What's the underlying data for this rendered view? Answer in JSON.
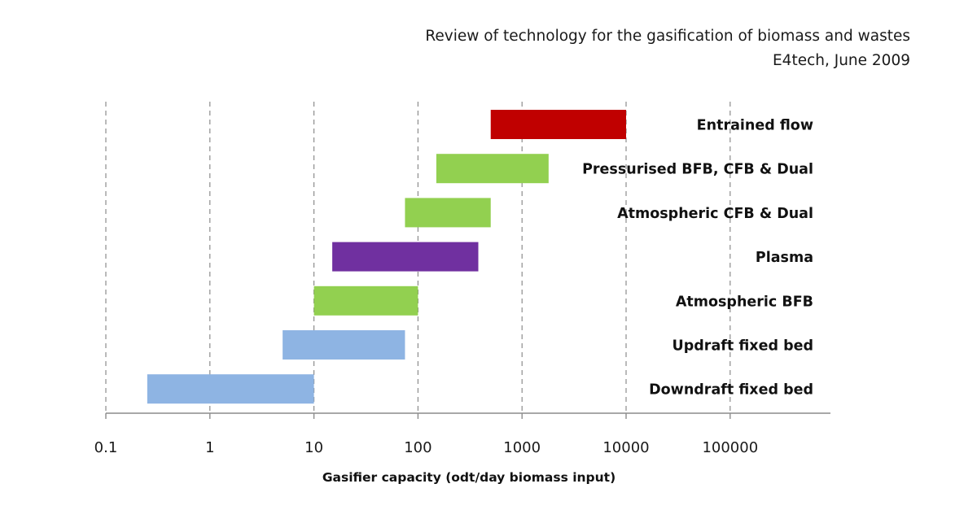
{
  "header": {
    "line1": "Review of technology for the gasification of biomass and wastes",
    "line2": "E4tech, June 2009"
  },
  "chart_data": {
    "type": "bar",
    "orientation": "horizontal-range",
    "x_scale": "log",
    "xlim": [
      0.1,
      1000000
    ],
    "xlabel": "Gasifier capacity (odt/day biomass input)",
    "ylabel": "",
    "grid": true,
    "x_ticks": [
      0.1,
      1,
      10,
      100,
      1000,
      10000,
      100000
    ],
    "x_tick_labels": [
      "0.1",
      "1",
      "10",
      "100",
      "1000",
      "10000",
      "100000"
    ],
    "categories": [
      "Entrained flow",
      "Pressurised BFB, CFB & Dual",
      "Atmospheric CFB & Dual",
      "Plasma",
      "Atmospheric BFB",
      "Updraft fixed bed",
      "Downdraft fixed bed"
    ],
    "ranges": [
      {
        "min": 500,
        "max": 10000,
        "color": "#c00000"
      },
      {
        "min": 150,
        "max": 1800,
        "color": "#92d050"
      },
      {
        "min": 75,
        "max": 500,
        "color": "#92d050"
      },
      {
        "min": 15,
        "max": 380,
        "color": "#7030a0"
      },
      {
        "min": 10,
        "max": 100,
        "color": "#92d050"
      },
      {
        "min": 5,
        "max": 75,
        "color": "#8eb4e3"
      },
      {
        "min": 0.25,
        "max": 10,
        "color": "#8eb4e3"
      }
    ]
  }
}
